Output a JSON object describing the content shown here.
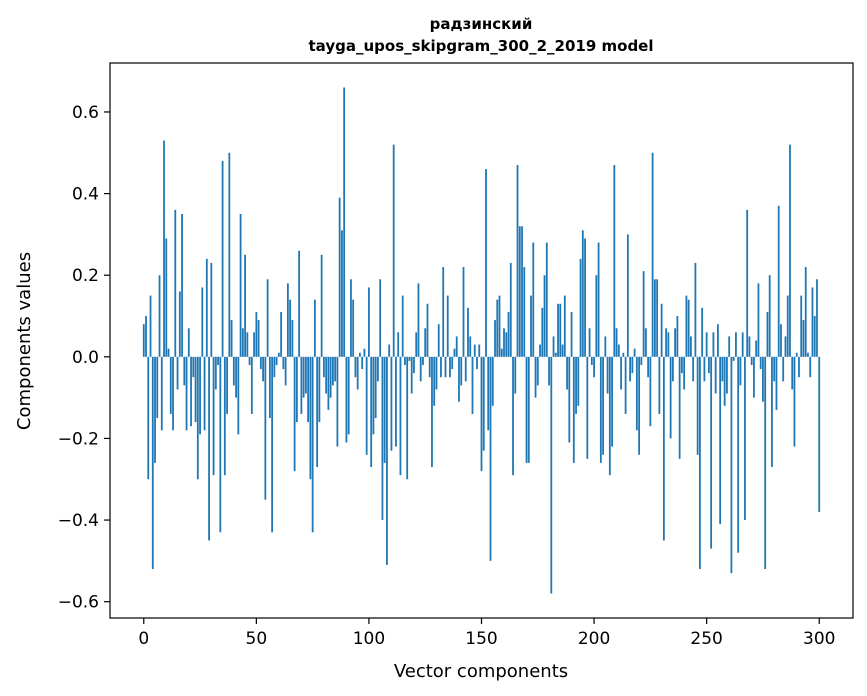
{
  "chart_data": {
    "type": "bar",
    "title": "радзинский",
    "subtitle": "tayga_upos_skipgram_300_2_2019 model",
    "xlabel": "Vector components",
    "ylabel": "Components values",
    "xlim": [
      -15,
      315
    ],
    "ylim": [
      -0.64,
      0.72
    ],
    "xticks": [
      0,
      50,
      100,
      150,
      200,
      250,
      300
    ],
    "yticks": [
      -0.6,
      -0.4,
      -0.2,
      0.0,
      0.2,
      0.4,
      0.6
    ],
    "ytick_labels": [
      "−0.6",
      "−0.4",
      "−0.2",
      "0.0",
      "0.2",
      "0.4",
      "0.6"
    ],
    "color": "#1f77b4",
    "values": [
      0.08,
      0.1,
      -0.3,
      0.15,
      -0.52,
      -0.26,
      -0.15,
      0.2,
      -0.18,
      0.53,
      0.29,
      0.02,
      -0.14,
      -0.18,
      0.36,
      -0.08,
      0.16,
      0.35,
      -0.07,
      -0.18,
      0.07,
      -0.17,
      -0.05,
      -0.16,
      -0.3,
      -0.19,
      0.17,
      -0.18,
      0.24,
      -0.45,
      0.23,
      -0.29,
      -0.08,
      -0.02,
      -0.43,
      0.48,
      -0.29,
      -0.14,
      0.5,
      0.09,
      -0.07,
      -0.1,
      -0.19,
      0.35,
      0.07,
      0.25,
      0.06,
      -0.02,
      -0.14,
      0.06,
      0.11,
      0.09,
      -0.03,
      -0.06,
      -0.35,
      0.19,
      -0.15,
      -0.43,
      -0.05,
      -0.02,
      0.01,
      0.11,
      -0.03,
      -0.07,
      0.18,
      0.14,
      0.09,
      -0.28,
      -0.16,
      0.26,
      -0.14,
      -0.1,
      -0.09,
      -0.16,
      -0.3,
      -0.43,
      0.14,
      -0.27,
      -0.16,
      0.25,
      -0.05,
      -0.09,
      -0.13,
      -0.1,
      -0.07,
      -0.06,
      -0.22,
      0.39,
      0.31,
      0.66,
      -0.21,
      -0.19,
      0.19,
      0.14,
      -0.05,
      -0.08,
      0.01,
      -0.03,
      0.02,
      -0.24,
      0.17,
      -0.27,
      -0.19,
      -0.15,
      -0.06,
      0.19,
      -0.4,
      -0.26,
      -0.51,
      0.03,
      -0.23,
      0.52,
      -0.22,
      0.06,
      -0.29,
      0.15,
      -0.02,
      -0.3,
      -0.01,
      -0.09,
      -0.04,
      0.06,
      0.18,
      -0.06,
      -0.02,
      0.07,
      0.13,
      -0.05,
      -0.27,
      -0.12,
      -0.08,
      0.08,
      -0.05,
      0.22,
      -0.05,
      0.15,
      -0.05,
      -0.03,
      0.02,
      0.05,
      -0.11,
      -0.07,
      0.22,
      -0.06,
      0.12,
      0.05,
      -0.14,
      0.03,
      -0.03,
      0.03,
      -0.28,
      -0.23,
      0.46,
      -0.18,
      -0.5,
      -0.12,
      0.09,
      0.14,
      0.15,
      0.02,
      0.07,
      0.06,
      0.11,
      0.23,
      -0.29,
      -0.09,
      0.47,
      0.32,
      0.32,
      0.22,
      -0.26,
      -0.26,
      0.15,
      0.28,
      -0.1,
      -0.07,
      0.03,
      0.12,
      0.2,
      0.28,
      -0.07,
      -0.58,
      0.05,
      0.01,
      0.13,
      0.13,
      0.03,
      0.15,
      -0.08,
      -0.21,
      0.11,
      -0.26,
      -0.14,
      -0.12,
      0.24,
      0.31,
      0.29,
      -0.25,
      0.07,
      -0.02,
      -0.05,
      0.2,
      0.28,
      -0.26,
      -0.24,
      0.05,
      -0.09,
      -0.29,
      -0.22,
      0.47,
      0.07,
      0.03,
      -0.08,
      0.01,
      -0.14,
      0.3,
      -0.06,
      -0.04,
      0.02,
      -0.18,
      -0.24,
      -0.02,
      0.21,
      0.07,
      -0.05,
      -0.17,
      0.5,
      0.19,
      0.19,
      -0.14,
      0.13,
      -0.45,
      0.07,
      0.06,
      -0.2,
      -0.06,
      0.07,
      0.1,
      -0.25,
      -0.04,
      -0.08,
      0.15,
      0.14,
      0.05,
      -0.06,
      0.23,
      -0.24,
      -0.52,
      0.12,
      -0.06,
      0.06,
      -0.04,
      -0.47,
      0.06,
      -0.09,
      0.08,
      -0.41,
      -0.06,
      -0.12,
      -0.09,
      0.05,
      -0.53,
      -0.01,
      0.06,
      -0.48,
      -0.07,
      0.06,
      -0.4,
      0.36,
      0.05,
      -0.02,
      -0.1,
      0.04,
      0.18,
      -0.03,
      -0.11,
      -0.52,
      0.11,
      0.2,
      -0.27,
      -0.06,
      -0.13,
      0.37,
      0.08,
      -0.06,
      0.05,
      0.15,
      0.52,
      -0.08,
      -0.22,
      0.01,
      -0.05,
      0.15,
      0.09,
      0.22,
      0.01,
      -0.05,
      0.17,
      0.1,
      0.19,
      -0.38
    ]
  }
}
